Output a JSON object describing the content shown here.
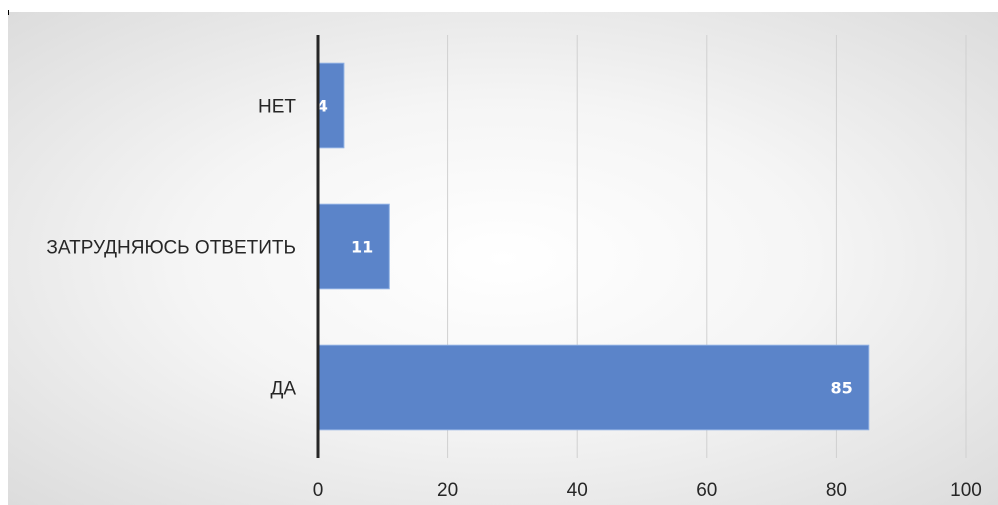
{
  "chart_data": {
    "type": "bar",
    "orientation": "horizontal",
    "categories": [
      "ДА",
      "ЗАТРУДНЯЮСЬ ОТВЕТИТЬ",
      "НЕТ"
    ],
    "values": [
      85,
      11,
      4
    ],
    "data_labels": [
      "85",
      "11",
      "4"
    ],
    "xticks": [
      "0",
      "20",
      "40",
      "60",
      "80",
      "100"
    ],
    "xlim": [
      0,
      100
    ],
    "grid": "vertical",
    "legend": "none",
    "bar_color": "#5b84c9",
    "bar_edge_color": "#8fb0e3",
    "axis_color": "#262626",
    "grid_color": "#d0d0d0"
  }
}
